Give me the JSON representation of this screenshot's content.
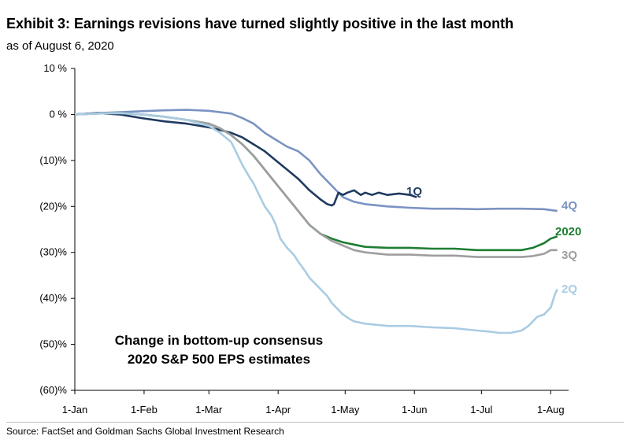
{
  "header": {
    "title": "Exhibit 3: Earnings revisions have turned slightly positive in the last month",
    "subtitle": "as of August 6, 2020"
  },
  "footer": {
    "source": "Source: FactSet and Goldman Sachs Global Investment Research"
  },
  "chart_data": {
    "type": "line",
    "title": "Exhibit 3: Earnings revisions have turned slightly positive in the last month",
    "subtitle": "as of August 6, 2020",
    "xlabel": "",
    "ylabel": "",
    "x_unit": "days since 1-Jan",
    "xlim": [
      0,
      221
    ],
    "ylim": [
      -60,
      10
    ],
    "grid": false,
    "x_ticks": [
      {
        "label": "1-Jan",
        "value": 0
      },
      {
        "label": "1-Feb",
        "value": 31
      },
      {
        "label": "1-Mar",
        "value": 60
      },
      {
        "label": "1-Apr",
        "value": 91
      },
      {
        "label": "1-May",
        "value": 121
      },
      {
        "label": "1-Jun",
        "value": 152
      },
      {
        "label": "1-Jul",
        "value": 182
      },
      {
        "label": "1-Aug",
        "value": 213
      }
    ],
    "y_ticks": [
      {
        "label": "10 %",
        "value": 10
      },
      {
        "label": "0 %",
        "value": 0
      },
      {
        "label": "(10)%",
        "value": -10
      },
      {
        "label": "(20)%",
        "value": -20
      },
      {
        "label": "(30)%",
        "value": -30
      },
      {
        "label": "(40)%",
        "value": -40
      },
      {
        "label": "(50)%",
        "value": -50
      },
      {
        "label": "(60)%",
        "value": -60
      }
    ],
    "annotation": [
      "Change in bottom-up consensus",
      "2020 S&P 500 EPS estimates"
    ],
    "series": [
      {
        "name": "4Q",
        "color": "#7a93c2",
        "x": [
          0,
          10,
          20,
          30,
          40,
          50,
          60,
          70,
          75,
          80,
          85,
          90,
          95,
          100,
          105,
          110,
          115,
          120,
          125,
          130,
          140,
          150,
          160,
          170,
          180,
          190,
          200,
          210,
          216
        ],
        "y": [
          0,
          0.3,
          0.5,
          0.7,
          0.9,
          1.0,
          0.8,
          0.2,
          -0.8,
          -2,
          -4,
          -5.5,
          -7,
          -8,
          -10,
          -13,
          -15.5,
          -18,
          -19,
          -19.5,
          -20,
          -20.3,
          -20.5,
          -20.5,
          -20.6,
          -20.5,
          -20.5,
          -20.6,
          -21
        ]
      },
      {
        "name": "1Q",
        "color": "#1f3a5f",
        "x": [
          0,
          10,
          20,
          30,
          40,
          50,
          60,
          70,
          75,
          80,
          85,
          90,
          95,
          100,
          105,
          110,
          113,
          115,
          116,
          118,
          120,
          122,
          125,
          128,
          130,
          133,
          136,
          140,
          145,
          150,
          153
        ],
        "y": [
          0,
          0.3,
          0,
          -0.8,
          -1.5,
          -2,
          -2.8,
          -4,
          -5,
          -6.5,
          -8,
          -10,
          -12,
          -14,
          -16.5,
          -18.5,
          -19.5,
          -19.8,
          -19.5,
          -17,
          -17.5,
          -17,
          -16.5,
          -17.5,
          -17,
          -17.5,
          -17,
          -17.5,
          -17.2,
          -17.5,
          -18
        ]
      },
      {
        "name": "2020",
        "color": "#1e7d32",
        "x": [
          0,
          10,
          20,
          30,
          40,
          50,
          60,
          65,
          70,
          75,
          80,
          85,
          90,
          95,
          100,
          105,
          110,
          115,
          120,
          125,
          130,
          140,
          150,
          160,
          170,
          180,
          190,
          200,
          205,
          210,
          213,
          216
        ],
        "y": [
          0,
          0.2,
          0.3,
          0,
          -0.5,
          -1.2,
          -2,
          -3,
          -4.5,
          -6.5,
          -9,
          -12,
          -15,
          -18,
          -21,
          -24,
          -26,
          -27,
          -27.8,
          -28.3,
          -28.8,
          -29,
          -29,
          -29.2,
          -29.2,
          -29.5,
          -29.5,
          -29.5,
          -29,
          -28,
          -27,
          -26.5
        ]
      },
      {
        "name": "3Q",
        "color": "#9e9e9e",
        "x": [
          0,
          10,
          20,
          30,
          40,
          50,
          60,
          65,
          70,
          75,
          80,
          85,
          90,
          95,
          100,
          105,
          110,
          115,
          120,
          125,
          130,
          140,
          150,
          160,
          170,
          180,
          190,
          200,
          205,
          210,
          213,
          216
        ],
        "y": [
          0,
          0.2,
          0.3,
          0,
          -0.5,
          -1.2,
          -2,
          -3,
          -4.5,
          -6.5,
          -9,
          -12,
          -15,
          -18,
          -21,
          -24,
          -26,
          -27.5,
          -28.5,
          -29.5,
          -30,
          -30.5,
          -30.5,
          -30.7,
          -30.7,
          -31,
          -31,
          -31,
          -30.8,
          -30.3,
          -29.5,
          -29.5
        ]
      },
      {
        "name": "2Q",
        "color": "#a9cce3",
        "x": [
          0,
          10,
          20,
          30,
          40,
          50,
          60,
          65,
          70,
          72,
          75,
          78,
          80,
          82,
          85,
          88,
          90,
          92,
          95,
          98,
          100,
          103,
          105,
          108,
          110,
          113,
          115,
          118,
          120,
          123,
          125,
          130,
          140,
          150,
          160,
          170,
          180,
          185,
          190,
          195,
          200,
          203,
          205,
          207,
          210,
          213,
          215,
          216
        ],
        "y": [
          0,
          0.2,
          0.3,
          0,
          -0.5,
          -1.2,
          -2.5,
          -4,
          -6,
          -8,
          -11,
          -13.5,
          -15,
          -17,
          -20,
          -22,
          -24,
          -27,
          -29,
          -30.5,
          -32,
          -34,
          -35.5,
          -37,
          -38,
          -39.5,
          -41,
          -42.5,
          -43.5,
          -44.5,
          -45,
          -45.5,
          -46,
          -46,
          -46.3,
          -46.5,
          -47,
          -47.2,
          -47.5,
          -47.5,
          -47,
          -46,
          -45,
          -44,
          -43.5,
          -42,
          -39,
          -38
        ]
      }
    ]
  }
}
